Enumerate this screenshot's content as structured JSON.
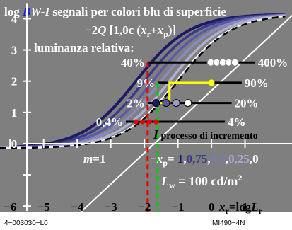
{
  "chart_data": {
    "type": "line",
    "title": {
      "prefix": "log ",
      "accent": "B",
      "accent_color": "#1a1aff",
      "suffix_italic": "W-I",
      "rest": " segnali per colori blu di superficie"
    },
    "formula": {
      "left": "−2",
      "q": "Q",
      "mid": " [1,0c (",
      "x1": "x",
      "sub1": "r",
      "plus": "+",
      "x2": "x",
      "sub2": "p",
      "close": ")]"
    },
    "subtitle": "luminanza relativa:",
    "xlabel": {
      "x": "x",
      "sub": "r",
      "eq": "=log",
      "L": "L",
      "lsub": "r"
    },
    "x_ticks": [
      "−6",
      "−5",
      "−4",
      "−3",
      "−2",
      "−1",
      "0",
      "1"
    ],
    "x_tick_values": [
      -6,
      -5,
      -4,
      -3,
      -2,
      -1,
      0,
      1
    ],
    "y_ticks": [
      "0",
      "1",
      "2",
      "3",
      "4"
    ],
    "y_tick_values": [
      0,
      1,
      2,
      3,
      4
    ],
    "xlim": [
      -6.3,
      2.4
    ],
    "ylim": [
      -2.2,
      4.6
    ],
    "percent_levels": [
      {
        "left": "40%",
        "right": "400%",
        "y": 2.6,
        "x_start": -1.9,
        "x_end": 1.3
      },
      {
        "left": "9%",
        "right": "90%",
        "y": 1.95,
        "x_start": -1.6,
        "x_end": 0.9
      },
      {
        "left": "2%",
        "right": "20%",
        "y": 1.3,
        "x_start": -1.9,
        "x_end": 0.6
      },
      {
        "left": "0,4%",
        "right": "4%",
        "y": 0.7,
        "x_start": -2.55,
        "x_end": 0.4
      }
    ],
    "markers": {
      "white_circles_y26": [
        -0.02,
        0.16,
        0.34,
        0.52,
        0.7
      ],
      "y13_points": [
        {
          "x": -1.65,
          "color": "#1a1a66"
        },
        {
          "x": -1.35,
          "color": "#5a5a9a"
        },
        {
          "x": -1.05,
          "color": "#9a9acc"
        },
        {
          "x": -0.7,
          "color": "#ffffff"
        }
      ],
      "red_points_y07": [
        -2.25,
        -2.05,
        -1.85,
        -1.65
      ],
      "yellow_point": {
        "x": 0.0,
        "y": 1.95
      }
    },
    "yellow_path": [
      [
        -1.7,
        1.3
      ],
      [
        -1.25,
        1.3
      ],
      [
        -1.25,
        1.95
      ],
      [
        0.0,
        1.95
      ]
    ],
    "red_dashed_x": -1.9,
    "green_dashed_x": -1.6,
    "increment_label": {
      "I": "I",
      "text": " processo di incremento"
    },
    "m_label": {
      "m": "m",
      "eq": "=1"
    },
    "xp_label": {
      "minus": "−",
      "x": "x",
      "sub": "p",
      "eq": "="
    },
    "xp_values": [
      {
        "text": "1",
        "color": "#1a1a66"
      },
      {
        "text": ",",
        "color": "#ffffff"
      },
      {
        "text": "0,75",
        "color": "#3a3a8a"
      },
      {
        "text": ",",
        "color": "#ffffff"
      },
      {
        "text": "0,5",
        "color": "#7a7ab6"
      },
      {
        "text": ",",
        "color": "#ffffff"
      },
      {
        "text": "0,25",
        "color": "#a8a8d8"
      },
      {
        "text": ",0",
        "color": "#ffffff"
      }
    ],
    "lw_label": {
      "L": "L",
      "sub": "w",
      "text": " = 100 cd/m",
      "sup": "2"
    },
    "series": [
      {
        "name": "",
        "x0": -3.6,
        "color": "#3a3a8a"
      },
      {
        "name": "",
        "x0": -3.35,
        "color": "#5a5aa6"
      },
      {
        "name": "",
        "x0": -3.1,
        "color": "#8a8ac0"
      },
      {
        "name": "",
        "x0": -2.85,
        "color": "#b0b0d6"
      }
    ],
    "dark_series_x0": -3.85,
    "dashed_series_x0": -2.6,
    "linear_line": {
      "x_start": -3.9,
      "slope": 1
    },
    "grid": false,
    "colors": {
      "background": "#7f7f7f",
      "red": "#e60000",
      "green": "#00d000",
      "yellow": "#ffff00",
      "blue_dark": "#1a1a66"
    }
  },
  "footer": {
    "left": "4−003030−L0",
    "right": "MI490−4N"
  }
}
